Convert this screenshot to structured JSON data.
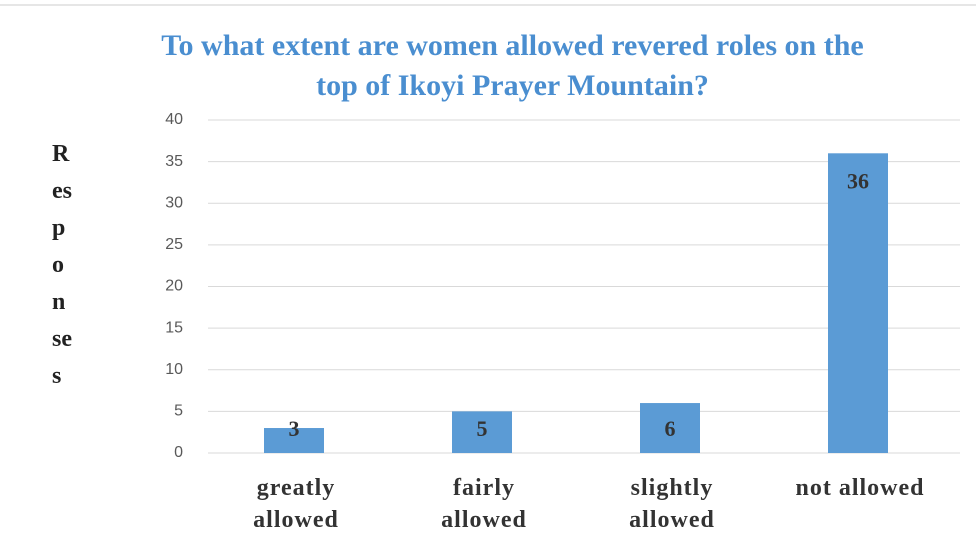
{
  "chart_data": {
    "type": "bar",
    "title": "To what extent are women allowed revered roles on the top of Ikoyi Prayer Mountain?",
    "y_label": "Responses",
    "categories": [
      "greatly allowed",
      "fairly allowed",
      "slightly allowed",
      "not allowed"
    ],
    "values": [
      3,
      5,
      6,
      36
    ],
    "color": "#5b9bd5",
    "ylim": [
      0,
      40
    ],
    "yticks": [
      0,
      5,
      10,
      15,
      20,
      25,
      30,
      35,
      40
    ],
    "grid": true
  }
}
